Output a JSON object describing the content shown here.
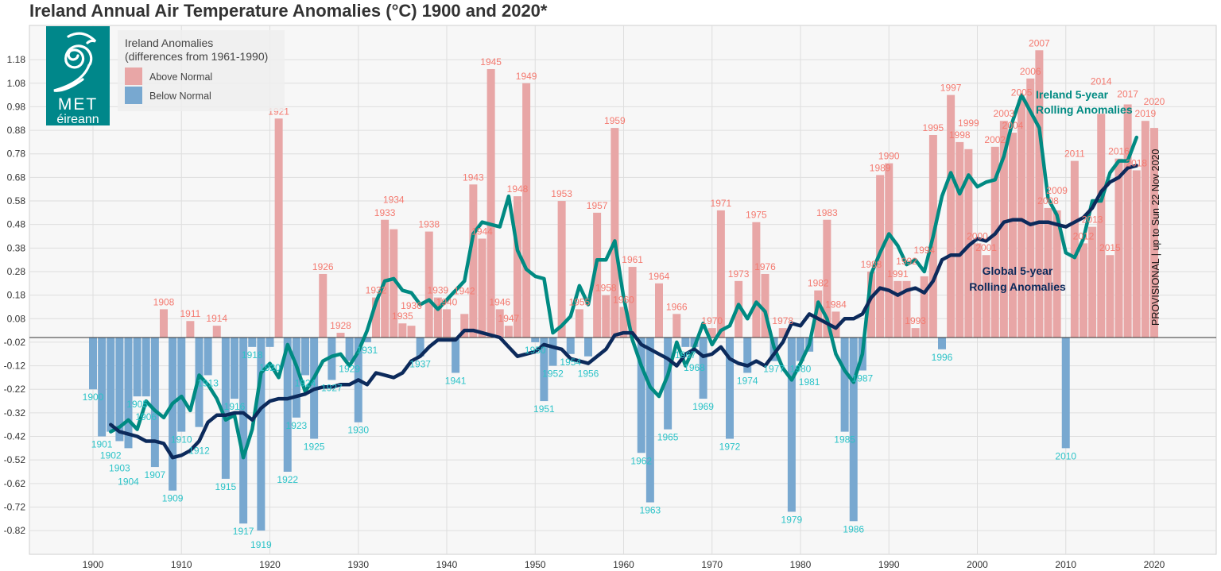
{
  "chart_data": {
    "type": "bar",
    "title": "Ireland Annual Air Temperature Anomalies (°C) 1900 and 2020*",
    "xlabel": "",
    "ylabel": "",
    "xlim": [
      1893,
      2027
    ],
    "ylim": [
      -0.92,
      1.32
    ],
    "y_ticks": [
      1.18,
      1.08,
      0.98,
      0.88,
      0.78,
      0.68,
      0.58,
      0.48,
      0.38,
      0.28,
      0.18,
      0.08,
      -0.02,
      -0.12,
      -0.22,
      -0.32,
      -0.42,
      -0.52,
      -0.62,
      -0.72,
      -0.82
    ],
    "x_ticks": [
      1900,
      1910,
      1920,
      1930,
      1940,
      1950,
      1960,
      1970,
      1980,
      1990,
      2000,
      2010,
      2020
    ],
    "grid": true,
    "legend": {
      "placement": "top-left",
      "title_line1": "Ireland Anomalies",
      "title_line2": "(differences from 1961-1990)",
      "above_label": "Above Normal",
      "below_label": "Below Normal"
    },
    "colors": {
      "above_bar": "#e8a6a6",
      "below_bar": "#78a8d0",
      "above_label": "#f47a70",
      "below_label": "#2cc3c8",
      "ireland_line": "#008a82",
      "global_line": "#0c2a5b"
    },
    "annual": {
      "years": [
        1900,
        1901,
        1902,
        1903,
        1904,
        1905,
        1906,
        1907,
        1908,
        1909,
        1910,
        1911,
        1912,
        1913,
        1914,
        1915,
        1916,
        1917,
        1918,
        1919,
        1920,
        1921,
        1922,
        1923,
        1924,
        1925,
        1926,
        1927,
        1928,
        1929,
        1930,
        1931,
        1932,
        1933,
        1934,
        1935,
        1936,
        1937,
        1938,
        1939,
        1940,
        1941,
        1942,
        1943,
        1944,
        1945,
        1946,
        1947,
        1948,
        1949,
        1950,
        1951,
        1952,
        1953,
        1954,
        1955,
        1956,
        1957,
        1958,
        1959,
        1960,
        1961,
        1962,
        1963,
        1964,
        1965,
        1966,
        1967,
        1968,
        1969,
        1970,
        1971,
        1972,
        1973,
        1974,
        1975,
        1976,
        1977,
        1978,
        1979,
        1980,
        1981,
        1982,
        1983,
        1984,
        1985,
        1986,
        1987,
        1988,
        1989,
        1990,
        1991,
        1992,
        1993,
        1994,
        1995,
        1996,
        1997,
        1998,
        1999,
        2000,
        2001,
        2002,
        2003,
        2004,
        2005,
        2006,
        2007,
        2008,
        2009,
        2010,
        2011,
        2012,
        2013,
        2014,
        2015,
        2016,
        2017,
        2018,
        2019,
        2020
      ],
      "values": [
        -0.22,
        -0.42,
        -0.4,
        -0.44,
        -0.47,
        -0.25,
        -0.25,
        -0.55,
        0.12,
        -0.65,
        -0.4,
        0.07,
        -0.38,
        -0.16,
        0.05,
        -0.6,
        -0.26,
        -0.79,
        -0.04,
        -0.82,
        -0.04,
        0.93,
        -0.57,
        -0.34,
        -0.16,
        -0.43,
        0.27,
        -0.18,
        0.02,
        -0.1,
        -0.36,
        -0.02,
        0.17,
        0.5,
        0.46,
        0.06,
        0.05,
        -0.08,
        0.45,
        0.17,
        0.12,
        -0.15,
        0.1,
        0.65,
        0.42,
        1.14,
        0.12,
        0.05,
        0.6,
        1.08,
        -0.02,
        -0.27,
        -0.12,
        0.58,
        -0.07,
        0.12,
        -0.08,
        0.53,
        0.18,
        0.89,
        0.13,
        0.3,
        -0.49,
        -0.7,
        0.23,
        -0.39,
        0.1,
        -0.04,
        -0.04,
        -0.26,
        0.04,
        0.54,
        -0.43,
        0.24,
        -0.15,
        0.49,
        0.27,
        -0.1,
        0.04,
        -0.74,
        -0.1,
        -0.06,
        0.2,
        0.5,
        0.11,
        -0.4,
        -0.78,
        -0.14,
        0.28,
        0.69,
        0.74,
        0.24,
        0.24,
        0.04,
        0.26,
        0.86,
        -0.05,
        1.03,
        0.83,
        0.8,
        0.4,
        0.35,
        0.81,
        0.92,
        0.87,
        1.01,
        1.1,
        1.22,
        0.55,
        0.54,
        -0.47,
        0.75,
        0.4,
        0.47,
        0.95,
        0.35,
        0.76,
        0.99,
        0.71,
        0.92,
        0.89
      ]
    },
    "series": [
      {
        "name": "Ireland 5-year Rolling Anomalies",
        "name_line1": "Ireland 5-year",
        "name_line2": "Rolling Anomalies",
        "points": [
          [
            1902,
            -0.4
          ],
          [
            1903,
            -0.38
          ],
          [
            1904,
            -0.35
          ],
          [
            1905,
            -0.39
          ],
          [
            1906,
            -0.27
          ],
          [
            1907,
            -0.31
          ],
          [
            1908,
            -0.34
          ],
          [
            1909,
            -0.28
          ],
          [
            1910,
            -0.25
          ],
          [
            1911,
            -0.31
          ],
          [
            1912,
            -0.16
          ],
          [
            1913,
            -0.2
          ],
          [
            1914,
            -0.26
          ],
          [
            1915,
            -0.35
          ],
          [
            1916,
            -0.33
          ],
          [
            1917,
            -0.51
          ],
          [
            1918,
            -0.39
          ],
          [
            1919,
            -0.15
          ],
          [
            1920,
            -0.11
          ],
          [
            1921,
            -0.17
          ],
          [
            1922,
            -0.03
          ],
          [
            1923,
            -0.12
          ],
          [
            1924,
            -0.23
          ],
          [
            1925,
            -0.17
          ],
          [
            1926,
            -0.1
          ],
          [
            1927,
            -0.08
          ],
          [
            1928,
            -0.07
          ],
          [
            1929,
            -0.12
          ],
          [
            1930,
            -0.06
          ],
          [
            1931,
            0.03
          ],
          [
            1932,
            0.15
          ],
          [
            1933,
            0.24
          ],
          [
            1934,
            0.25
          ],
          [
            1935,
            0.2
          ],
          [
            1936,
            0.19
          ],
          [
            1937,
            0.14
          ],
          [
            1938,
            0.16
          ],
          [
            1939,
            0.12
          ],
          [
            1940,
            0.16
          ],
          [
            1941,
            0.2
          ],
          [
            1942,
            0.24
          ],
          [
            1943,
            0.44
          ],
          [
            1944,
            0.49
          ],
          [
            1945,
            0.48
          ],
          [
            1946,
            0.47
          ],
          [
            1947,
            0.6
          ],
          [
            1948,
            0.37
          ],
          [
            1949,
            0.29
          ],
          [
            1950,
            0.26
          ],
          [
            1951,
            0.25
          ],
          [
            1952,
            0.02
          ],
          [
            1953,
            0.05
          ],
          [
            1954,
            0.09
          ],
          [
            1955,
            0.22
          ],
          [
            1956,
            0.14
          ],
          [
            1957,
            0.33
          ],
          [
            1958,
            0.33
          ],
          [
            1959,
            0.41
          ],
          [
            1960,
            0.17
          ],
          [
            1961,
            -0.01
          ],
          [
            1962,
            -0.12
          ],
          [
            1963,
            -0.21
          ],
          [
            1964,
            -0.25
          ],
          [
            1965,
            -0.16
          ],
          [
            1966,
            -0.02
          ],
          [
            1967,
            -0.12
          ],
          [
            1968,
            -0.04
          ],
          [
            1969,
            0.06
          ],
          [
            1970,
            -0.03
          ],
          [
            1971,
            0.03
          ],
          [
            1972,
            0.05
          ],
          [
            1973,
            0.14
          ],
          [
            1974,
            0.08
          ],
          [
            1975,
            0.15
          ],
          [
            1976,
            0.11
          ],
          [
            1977,
            -0.04
          ],
          [
            1978,
            -0.13
          ],
          [
            1979,
            -0.18
          ],
          [
            1980,
            -0.11
          ],
          [
            1981,
            -0.03
          ],
          [
            1982,
            0.15
          ],
          [
            1983,
            0.08
          ],
          [
            1984,
            -0.07
          ],
          [
            1985,
            -0.14
          ],
          [
            1986,
            -0.19
          ],
          [
            1987,
            -0.07
          ],
          [
            1988,
            0.27
          ],
          [
            1989,
            0.36
          ],
          [
            1990,
            0.44
          ],
          [
            1991,
            0.39
          ],
          [
            1992,
            0.31
          ],
          [
            1993,
            0.33
          ],
          [
            1994,
            0.28
          ],
          [
            1995,
            0.43
          ],
          [
            1996,
            0.6
          ],
          [
            1997,
            0.7
          ],
          [
            1998,
            0.61
          ],
          [
            1999,
            0.69
          ],
          [
            2000,
            0.64
          ],
          [
            2001,
            0.66
          ],
          [
            2002,
            0.67
          ],
          [
            2003,
            0.77
          ],
          [
            2004,
            0.92
          ],
          [
            2005,
            1.03
          ],
          [
            2006,
            0.96
          ],
          [
            2007,
            0.89
          ],
          [
            2008,
            0.59
          ],
          [
            2009,
            0.52
          ],
          [
            2010,
            0.36
          ],
          [
            2011,
            0.34
          ],
          [
            2012,
            0.42
          ],
          [
            2013,
            0.58
          ],
          [
            2014,
            0.58
          ],
          [
            2015,
            0.7
          ],
          [
            2016,
            0.75
          ],
          [
            2017,
            0.75
          ],
          [
            2018,
            0.85
          ]
        ]
      },
      {
        "name": "Global 5-year Rolling Anomalies",
        "name_line1": "Global 5-year",
        "name_line2": "Rolling Anomalies",
        "points": [
          [
            1902,
            -0.37
          ],
          [
            1903,
            -0.4
          ],
          [
            1904,
            -0.41
          ],
          [
            1905,
            -0.42
          ],
          [
            1906,
            -0.44
          ],
          [
            1907,
            -0.44
          ],
          [
            1908,
            -0.45
          ],
          [
            1909,
            -0.51
          ],
          [
            1910,
            -0.5
          ],
          [
            1911,
            -0.48
          ],
          [
            1912,
            -0.44
          ],
          [
            1913,
            -0.36
          ],
          [
            1914,
            -0.33
          ],
          [
            1915,
            -0.33
          ],
          [
            1916,
            -0.32
          ],
          [
            1917,
            -0.32
          ],
          [
            1918,
            -0.35
          ],
          [
            1919,
            -0.3
          ],
          [
            1920,
            -0.27
          ],
          [
            1921,
            -0.26
          ],
          [
            1922,
            -0.26
          ],
          [
            1923,
            -0.25
          ],
          [
            1924,
            -0.24
          ],
          [
            1925,
            -0.22
          ],
          [
            1926,
            -0.21
          ],
          [
            1927,
            -0.21
          ],
          [
            1928,
            -0.2
          ],
          [
            1929,
            -0.2
          ],
          [
            1930,
            -0.18
          ],
          [
            1931,
            -0.2
          ],
          [
            1932,
            -0.15
          ],
          [
            1933,
            -0.16
          ],
          [
            1934,
            -0.17
          ],
          [
            1935,
            -0.15
          ],
          [
            1936,
            -0.1
          ],
          [
            1937,
            -0.08
          ],
          [
            1938,
            -0.04
          ],
          [
            1939,
            -0.01
          ],
          [
            1940,
            -0.01
          ],
          [
            1941,
            -0.01
          ],
          [
            1942,
            0.03
          ],
          [
            1943,
            0.03
          ],
          [
            1944,
            0.02
          ],
          [
            1945,
            0.01
          ],
          [
            1946,
            0.0
          ],
          [
            1947,
            -0.04
          ],
          [
            1948,
            -0.08
          ],
          [
            1949,
            -0.07
          ],
          [
            1950,
            -0.06
          ],
          [
            1951,
            -0.03
          ],
          [
            1952,
            -0.04
          ],
          [
            1953,
            -0.05
          ],
          [
            1954,
            -0.09
          ],
          [
            1955,
            -0.1
          ],
          [
            1956,
            -0.11
          ],
          [
            1957,
            -0.08
          ],
          [
            1958,
            -0.05
          ],
          [
            1959,
            0.01
          ],
          [
            1960,
            0.02
          ],
          [
            1961,
            0.02
          ],
          [
            1962,
            -0.03
          ],
          [
            1963,
            -0.05
          ],
          [
            1964,
            -0.07
          ],
          [
            1965,
            -0.09
          ],
          [
            1966,
            -0.12
          ],
          [
            1967,
            -0.07
          ],
          [
            1968,
            -0.05
          ],
          [
            1969,
            -0.08
          ],
          [
            1970,
            -0.07
          ],
          [
            1971,
            -0.04
          ],
          [
            1972,
            -0.09
          ],
          [
            1973,
            -0.11
          ],
          [
            1974,
            -0.12
          ],
          [
            1975,
            -0.1
          ],
          [
            1976,
            -0.12
          ],
          [
            1977,
            -0.07
          ],
          [
            1978,
            -0.02
          ],
          [
            1979,
            0.06
          ],
          [
            1980,
            0.05
          ],
          [
            1981,
            0.1
          ],
          [
            1982,
            0.08
          ],
          [
            1983,
            0.06
          ],
          [
            1984,
            0.04
          ],
          [
            1985,
            0.08
          ],
          [
            1986,
            0.08
          ],
          [
            1987,
            0.1
          ],
          [
            1988,
            0.17
          ],
          [
            1989,
            0.21
          ],
          [
            1990,
            0.2
          ],
          [
            1991,
            0.18
          ],
          [
            1992,
            0.2
          ],
          [
            1993,
            0.21
          ],
          [
            1994,
            0.19
          ],
          [
            1995,
            0.24
          ],
          [
            1996,
            0.33
          ],
          [
            1997,
            0.35
          ],
          [
            1998,
            0.35
          ],
          [
            1999,
            0.39
          ],
          [
            2000,
            0.42
          ],
          [
            2001,
            0.41
          ],
          [
            2002,
            0.44
          ],
          [
            2003,
            0.49
          ],
          [
            2004,
            0.5
          ],
          [
            2005,
            0.5
          ],
          [
            2006,
            0.48
          ],
          [
            2007,
            0.49
          ],
          [
            2008,
            0.49
          ],
          [
            2009,
            0.48
          ],
          [
            2010,
            0.47
          ],
          [
            2011,
            0.49
          ],
          [
            2012,
            0.51
          ],
          [
            2013,
            0.55
          ],
          [
            2014,
            0.62
          ],
          [
            2015,
            0.66
          ],
          [
            2016,
            0.68
          ],
          [
            2017,
            0.72
          ],
          [
            2018,
            0.73
          ]
        ]
      }
    ],
    "annotations": {
      "provisional": "PROVISIONAL | up to Sun 22 Nov 2020"
    }
  },
  "logo": {
    "text_line1": "MET",
    "text_line2": "éireann"
  }
}
